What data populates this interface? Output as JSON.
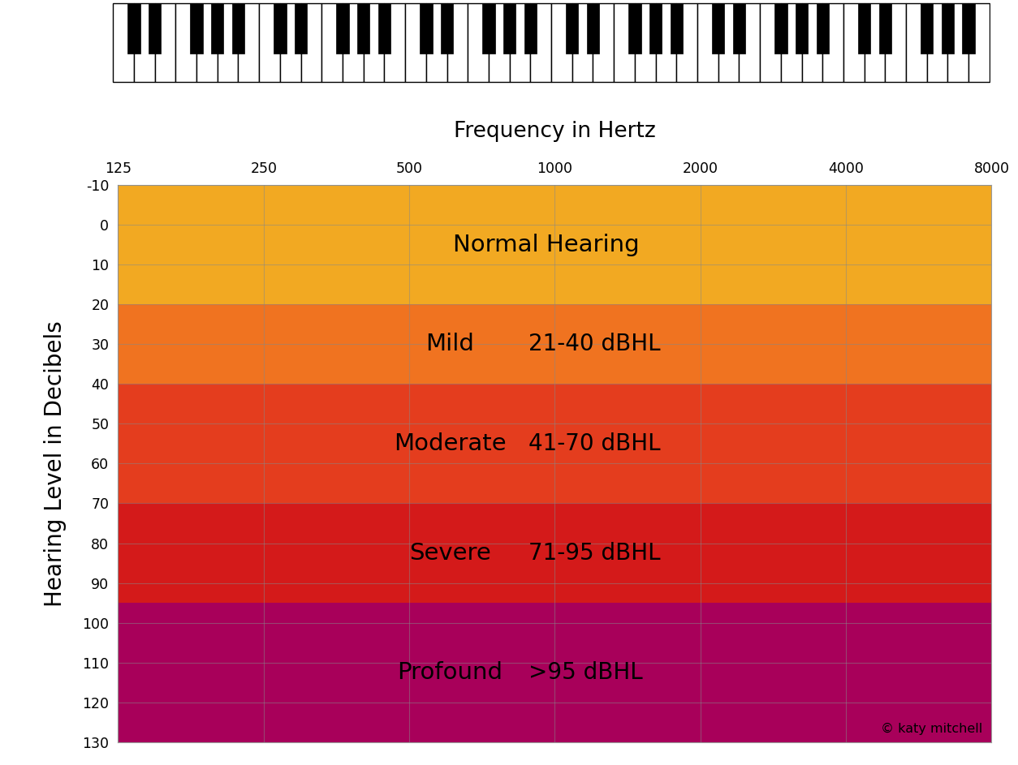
{
  "chart_data": {
    "type": "bands",
    "x_label": "Frequency in Hertz",
    "y_label": "Hearing Level in Decibels",
    "log": "x",
    "xlim": [
      125,
      8000
    ],
    "xticks": [
      125,
      250,
      500,
      1000,
      2000,
      4000,
      8000
    ],
    "ylim": [
      130,
      -10
    ],
    "yticks": [
      -10,
      0,
      10,
      20,
      30,
      40,
      50,
      60,
      70,
      80,
      90,
      100,
      110,
      120,
      130
    ],
    "grid": true,
    "bands": [
      {
        "name": "Normal Hearing",
        "values": [
          -10,
          20
        ],
        "color": "#f2a922"
      },
      {
        "name": "Mild",
        "range_label": "21-40 dBHL",
        "values": [
          20,
          40
        ],
        "color": "#f07320"
      },
      {
        "name": "Moderate",
        "range_label": "41-70 dBHL",
        "values": [
          40,
          70
        ],
        "color": "#e43d1e"
      },
      {
        "name": "Severe",
        "range_label": "71-95 dBHL",
        "values": [
          70,
          95
        ],
        "color": "#d41a1a"
      },
      {
        "name": "Profound",
        "range_label": ">95 dBHL",
        "values": [
          95,
          130
        ],
        "color": "#a8005a"
      }
    ],
    "annotations": [
      "© katy mitchell"
    ]
  }
}
